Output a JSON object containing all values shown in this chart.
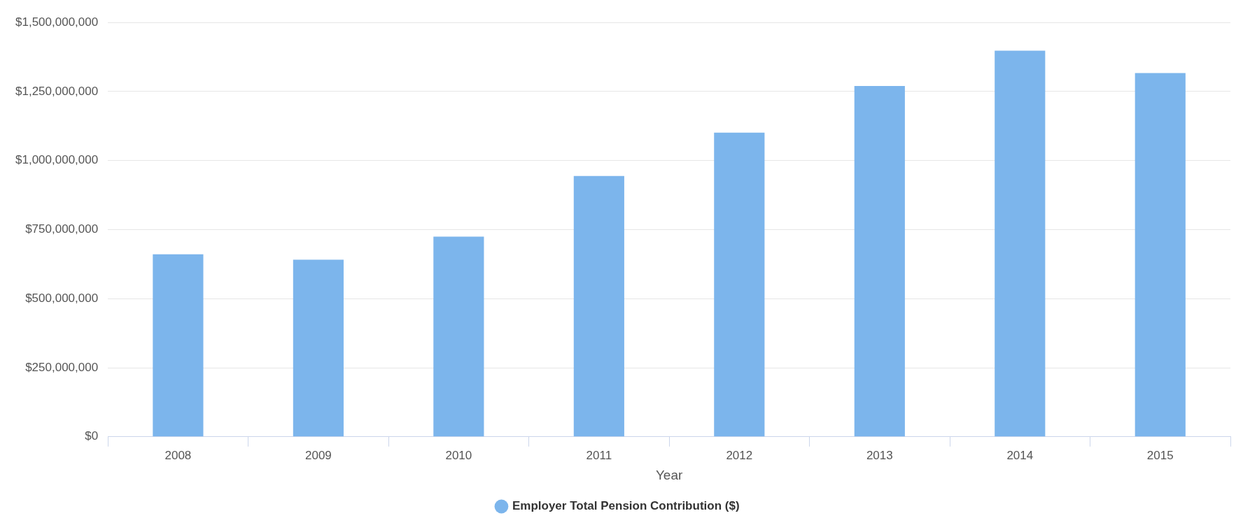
{
  "chart_data": {
    "type": "bar",
    "xlabel": "Year",
    "categories": [
      "2008",
      "2009",
      "2010",
      "2011",
      "2012",
      "2013",
      "2014",
      "2015"
    ],
    "series": [
      {
        "name": "Employer Total Pension Contribution ($)",
        "color": "#7cb5ec",
        "values": [
          661000000,
          641000000,
          725000000,
          944000000,
          1101000000,
          1270000000,
          1398000000,
          1317000000
        ]
      }
    ],
    "ylim": [
      0,
      1500000000
    ],
    "yticks": [
      {
        "value": 0,
        "label": "$0"
      },
      {
        "value": 250000000,
        "label": "$250,000,000"
      },
      {
        "value": 500000000,
        "label": "$500,000,000"
      },
      {
        "value": 750000000,
        "label": "$750,000,000"
      },
      {
        "value": 1000000000,
        "label": "$1,000,000,000"
      },
      {
        "value": 1250000000,
        "label": "$1,250,000,000"
      },
      {
        "value": 1500000000,
        "label": "$1,500,000,000"
      }
    ],
    "grid": "y",
    "legend": "bottom"
  }
}
